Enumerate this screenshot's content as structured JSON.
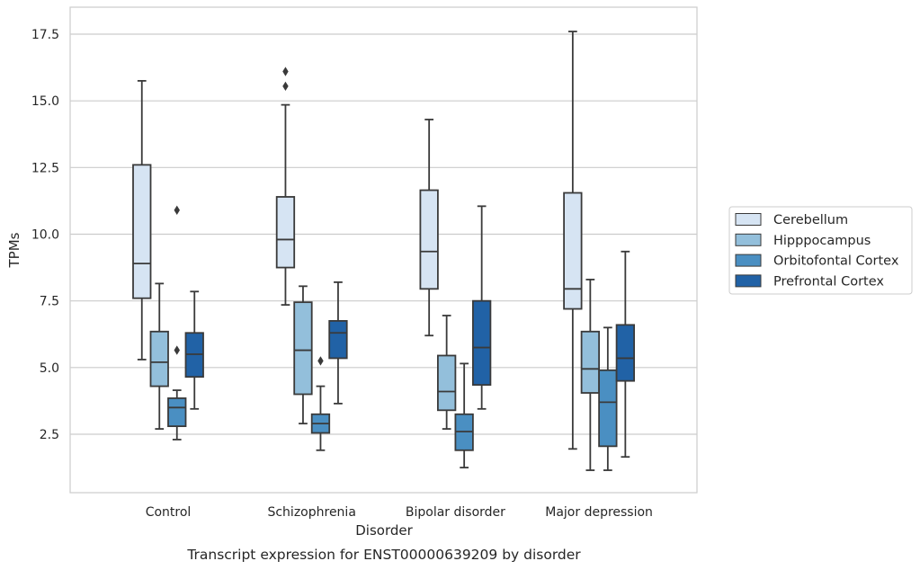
{
  "chart_data": {
    "type": "box",
    "caption": "Transcript expression for ENST00000639209 by disorder",
    "xlabel": "Disorder",
    "ylabel": "TPMs",
    "ylim": [
      0.4,
      18.5
    ],
    "yticks": [
      2.5,
      5.0,
      7.5,
      10.0,
      12.5,
      15.0,
      17.5
    ],
    "ytick_labels": [
      "2.5",
      "5.0",
      "7.5",
      "10.0",
      "12.5",
      "15.0",
      "17.5"
    ],
    "grid": "horizontal",
    "legend_position": "right",
    "categories": [
      "Control",
      "Schizophrenia",
      "Bipolar disorder",
      "Major depression"
    ],
    "series": [
      {
        "name": "Cerebellum",
        "color": "#d6e4f3",
        "boxes": [
          {
            "whisker_low": 5.3,
            "q1": 7.6,
            "median": 8.9,
            "q3": 12.6,
            "whisker_high": 15.75,
            "outliers": []
          },
          {
            "whisker_low": 7.35,
            "q1": 8.75,
            "median": 9.8,
            "q3": 11.4,
            "whisker_high": 14.85,
            "outliers": [
              16.1,
              15.55
            ]
          },
          {
            "whisker_low": 6.2,
            "q1": 7.95,
            "median": 9.35,
            "q3": 11.65,
            "whisker_high": 14.3,
            "outliers": []
          },
          {
            "whisker_low": 1.95,
            "q1": 7.2,
            "median": 7.95,
            "q3": 11.55,
            "whisker_high": 17.6,
            "outliers": []
          }
        ]
      },
      {
        "name": "Hipppocampus",
        "color": "#93bfdb",
        "boxes": [
          {
            "whisker_low": 2.7,
            "q1": 4.3,
            "median": 5.2,
            "q3": 6.35,
            "whisker_high": 8.15,
            "outliers": []
          },
          {
            "whisker_low": 2.9,
            "q1": 4.0,
            "median": 5.65,
            "q3": 7.45,
            "whisker_high": 8.05,
            "outliers": []
          },
          {
            "whisker_low": 2.7,
            "q1": 3.4,
            "median": 4.1,
            "q3": 5.45,
            "whisker_high": 6.95,
            "outliers": []
          },
          {
            "whisker_low": 1.15,
            "q1": 4.05,
            "median": 4.95,
            "q3": 6.35,
            "whisker_high": 8.3,
            "outliers": []
          }
        ]
      },
      {
        "name": "Orbitofontal Cortex",
        "color": "#4a8fc2",
        "boxes": [
          {
            "whisker_low": 2.3,
            "q1": 2.8,
            "median": 3.5,
            "q3": 3.85,
            "whisker_high": 4.15,
            "outliers": [
              10.9,
              5.65
            ]
          },
          {
            "whisker_low": 1.9,
            "q1": 2.55,
            "median": 2.9,
            "q3": 3.25,
            "whisker_high": 4.3,
            "outliers": [
              5.25
            ]
          },
          {
            "whisker_low": 1.25,
            "q1": 1.9,
            "median": 2.6,
            "q3": 3.25,
            "whisker_high": 5.15,
            "outliers": []
          },
          {
            "whisker_low": 1.15,
            "q1": 2.05,
            "median": 3.7,
            "q3": 4.9,
            "whisker_high": 6.5,
            "outliers": []
          }
        ]
      },
      {
        "name": "Prefrontal Cortex",
        "color": "#2162a6",
        "boxes": [
          {
            "whisker_low": 3.45,
            "q1": 4.65,
            "median": 5.5,
            "q3": 6.3,
            "whisker_high": 7.85,
            "outliers": []
          },
          {
            "whisker_low": 3.65,
            "q1": 5.35,
            "median": 6.3,
            "q3": 6.75,
            "whisker_high": 8.2,
            "outliers": []
          },
          {
            "whisker_low": 3.45,
            "q1": 4.35,
            "median": 5.75,
            "q3": 7.5,
            "whisker_high": 11.05,
            "outliers": []
          },
          {
            "whisker_low": 1.65,
            "q1": 4.5,
            "median": 5.35,
            "q3": 6.6,
            "whisker_high": 9.35,
            "outliers": []
          }
        ]
      }
    ]
  }
}
